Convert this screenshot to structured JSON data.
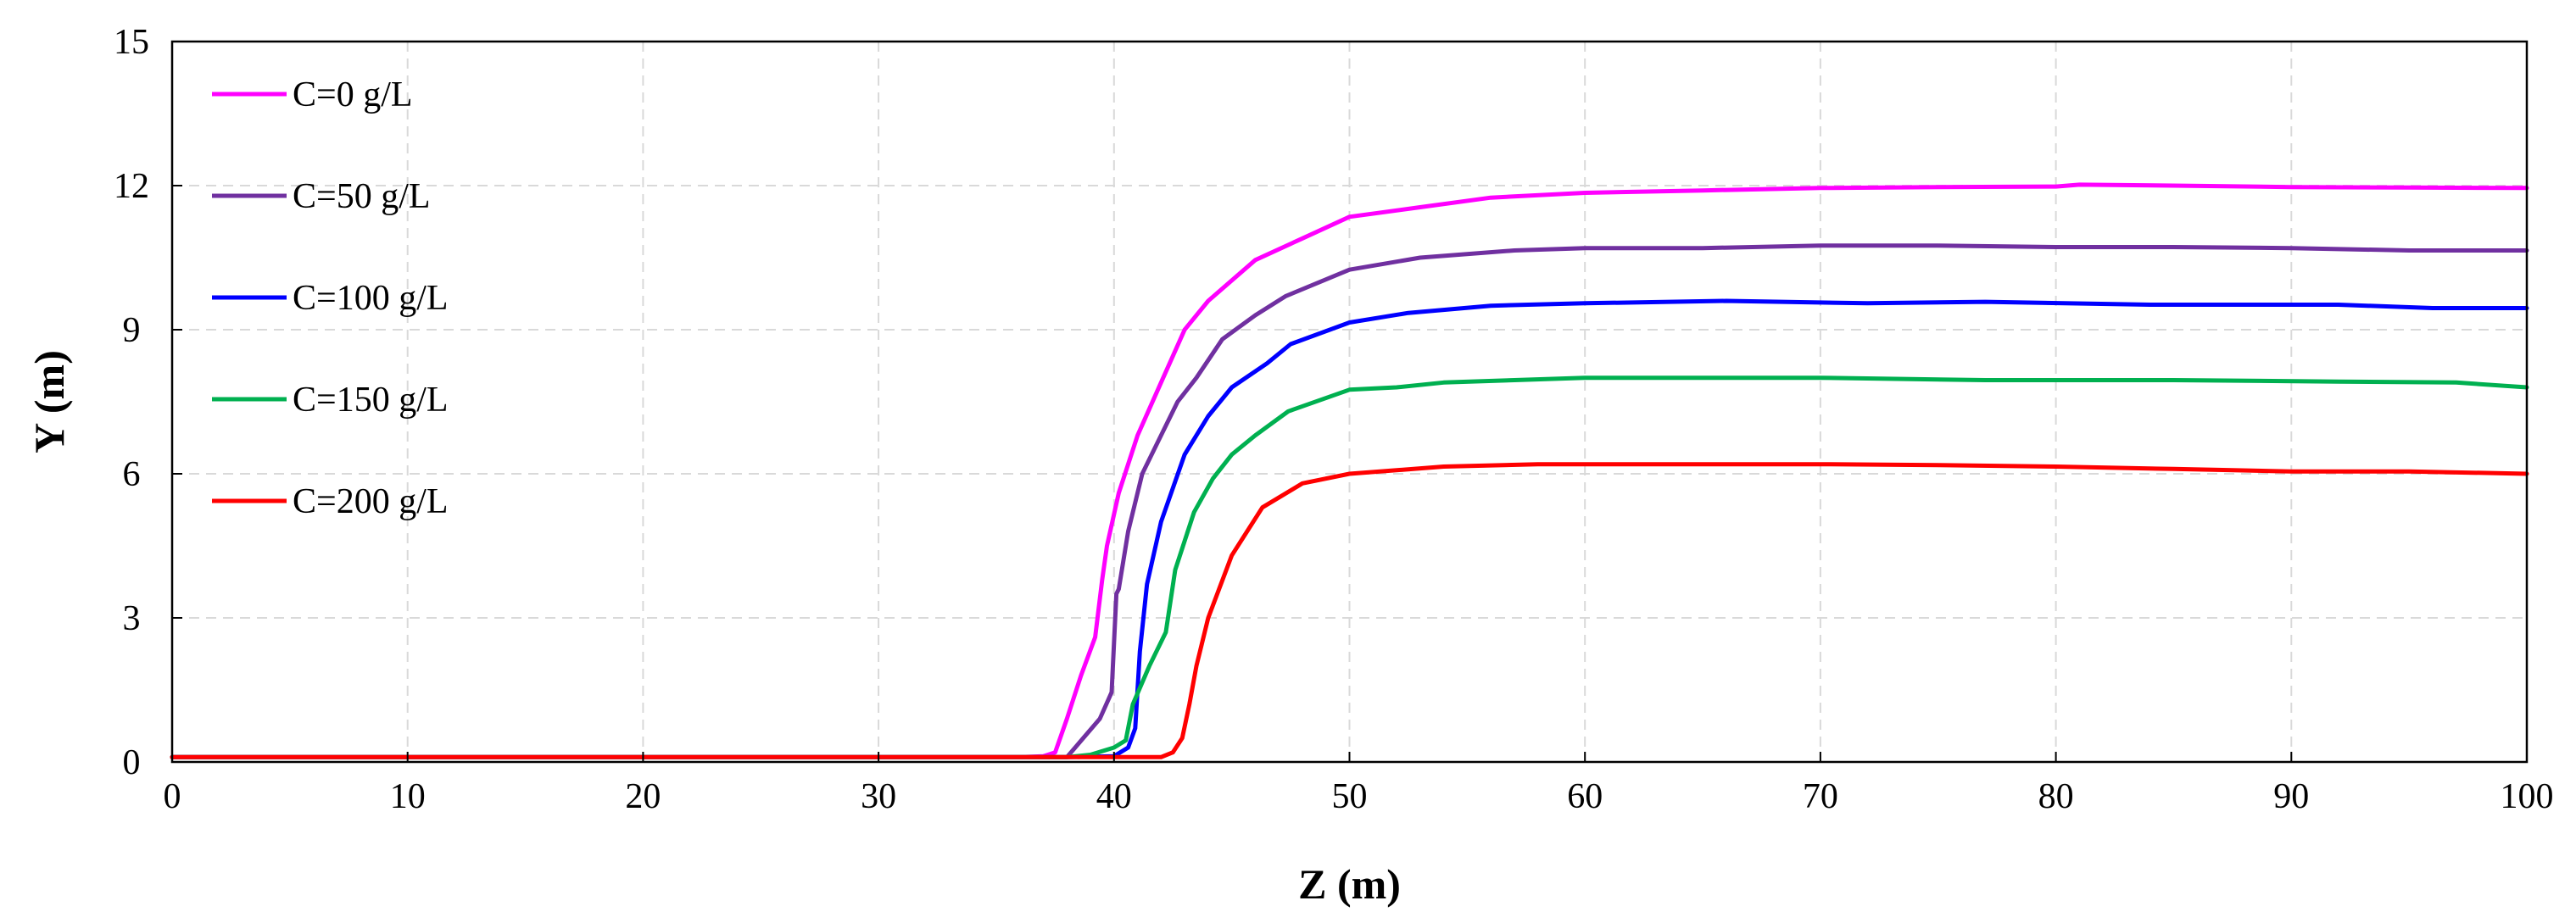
{
  "chart_data": {
    "type": "line",
    "title": "",
    "xlabel": "Z (m)",
    "ylabel": "Y (m)",
    "xlim": [
      0,
      100
    ],
    "ylim": [
      0,
      15
    ],
    "xticks": [
      0,
      10,
      20,
      30,
      40,
      50,
      60,
      70,
      80,
      90,
      100
    ],
    "yticks": [
      0,
      3,
      6,
      9,
      12,
      15
    ],
    "grid": true,
    "legend_position": "top-left",
    "series": [
      {
        "name": "C=0 g/L",
        "color": "#ff00ff",
        "x": [
          0,
          36,
          37,
          37.5,
          38,
          38.6,
          39.2,
          39.5,
          39.7,
          40.2,
          41,
          42,
          43,
          44,
          46,
          48,
          50,
          53,
          56,
          60,
          65,
          70,
          75,
          80,
          81,
          85,
          90,
          95,
          100
        ],
        "y": [
          0.1,
          0.1,
          0.12,
          0.2,
          0.9,
          1.8,
          2.6,
          3.8,
          4.5,
          5.6,
          6.8,
          7.9,
          9.0,
          9.6,
          10.45,
          10.9,
          11.35,
          11.55,
          11.75,
          11.85,
          11.9,
          11.95,
          11.97,
          11.98,
          12.02,
          12.0,
          11.97,
          11.96,
          11.95
        ]
      },
      {
        "name": "C=50 g/L",
        "color": "#7030a0",
        "x": [
          0,
          37,
          38,
          39.4,
          39.9,
          40.1,
          40.2,
          40.6,
          41.2,
          42,
          42.7,
          43.5,
          44.6,
          46,
          47.3,
          50,
          53,
          57,
          60,
          65,
          70,
          75,
          80,
          85,
          90,
          95,
          100
        ],
        "y": [
          0.1,
          0.1,
          0.1,
          0.9,
          1.45,
          3.5,
          3.6,
          4.8,
          6.0,
          6.8,
          7.5,
          8.0,
          8.8,
          9.3,
          9.7,
          10.25,
          10.5,
          10.65,
          10.7,
          10.7,
          10.75,
          10.75,
          10.72,
          10.72,
          10.7,
          10.65,
          10.65
        ]
      },
      {
        "name": "C=100 g/L",
        "color": "#0000ff",
        "x": [
          0,
          38,
          40,
          40.6,
          40.9,
          41.1,
          41.4,
          42,
          43,
          44,
          45,
          46.5,
          47.5,
          50,
          52.5,
          56,
          60,
          66,
          72,
          77,
          84,
          90,
          92,
          96,
          100
        ],
        "y": [
          0.1,
          0.1,
          0.12,
          0.3,
          0.7,
          2.3,
          3.7,
          5.0,
          6.4,
          7.2,
          7.8,
          8.3,
          8.7,
          9.15,
          9.35,
          9.5,
          9.55,
          9.6,
          9.55,
          9.58,
          9.52,
          9.52,
          9.52,
          9.45,
          9.45
        ]
      },
      {
        "name": "C=150 g/L",
        "color": "#00b050",
        "x": [
          0,
          38,
          39,
          40,
          40.5,
          40.8,
          41.5,
          42.2,
          42.6,
          43.4,
          44.2,
          45,
          46,
          47.4,
          50,
          52,
          54,
          57,
          60,
          70,
          77,
          85,
          92,
          97,
          100
        ],
        "y": [
          0.1,
          0.1,
          0.15,
          0.3,
          0.45,
          1.2,
          2.0,
          2.7,
          4.0,
          5.2,
          5.9,
          6.4,
          6.8,
          7.3,
          7.75,
          7.8,
          7.9,
          7.95,
          8.0,
          8.0,
          7.95,
          7.95,
          7.92,
          7.9,
          7.8
        ]
      },
      {
        "name": "C=200 g/L",
        "color": "#ff0000",
        "x": [
          0,
          41.5,
          42,
          42.5,
          42.9,
          43.2,
          43.5,
          44,
          45,
          46.3,
          48,
          50,
          54,
          58,
          65,
          70,
          75,
          80,
          85,
          90,
          95,
          100
        ],
        "y": [
          0.1,
          0.1,
          0.1,
          0.2,
          0.5,
          1.2,
          2.0,
          3.0,
          4.3,
          5.3,
          5.8,
          6.0,
          6.15,
          6.2,
          6.2,
          6.2,
          6.18,
          6.15,
          6.1,
          6.05,
          6.05,
          6.0
        ]
      }
    ]
  }
}
